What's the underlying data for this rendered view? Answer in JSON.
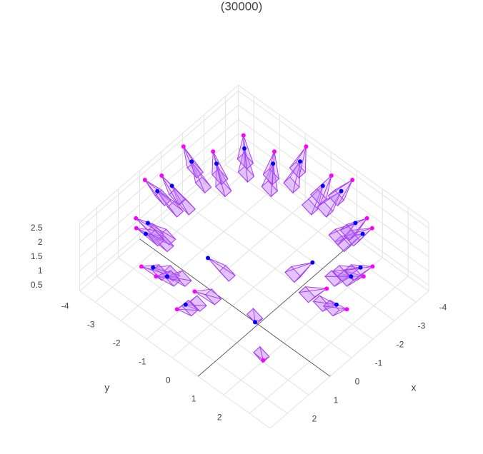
{
  "chart_data": {
    "type": "scatter3d",
    "title": "(30000)",
    "xlabel": "x",
    "ylabel": "y",
    "xlim": [
      -4.6,
      2.8
    ],
    "ylim": [
      -4.6,
      2.8
    ],
    "zlim": [
      0.3,
      2.7
    ],
    "xticks": [
      -4,
      -3,
      -2,
      -1,
      0,
      1,
      2
    ],
    "yticks": [
      -4,
      -3,
      -2,
      -1,
      0,
      1,
      2
    ],
    "zticks": [
      0.5,
      1,
      1.5,
      2,
      2.5
    ],
    "grid": true,
    "series": [
      {
        "color": "#0000ff",
        "x": [
          -0.9,
          -1.7,
          -2.5,
          -3.2,
          -3.7,
          -4.0,
          -4.1,
          -4.0,
          -3.7,
          -3.2,
          -2.5,
          -1.7,
          -0.9,
          -0.1,
          0.7,
          1.4,
          1.9,
          2.2,
          2.3,
          0.5,
          -0.3,
          -2.3
        ],
        "y": [
          2.3,
          2.2,
          1.9,
          1.4,
          0.7,
          -0.1,
          -0.9,
          -1.7,
          -2.5,
          -3.2,
          -3.7,
          -4.0,
          -4.1,
          -4.0,
          -3.7,
          -3.2,
          -2.5,
          -1.7,
          -0.9,
          0.3,
          -2.2,
          0.2
        ],
        "z": [
          1.9,
          2.3,
          1.9,
          2.3,
          1.9,
          2.3,
          1.9,
          2.3,
          1.9,
          2.3,
          1.9,
          2.3,
          1.9,
          2.3,
          1.9,
          2.3,
          1.9,
          2.3,
          1.9,
          0.9,
          1.0,
          1.1
        ]
      },
      {
        "color": "#ff00ff",
        "x": [
          -0.9,
          -1.8,
          -2.7,
          -3.4,
          -4.0,
          -4.4,
          -4.5,
          -4.4,
          -4.0,
          -3.4,
          -2.7,
          -1.8,
          -0.9,
          0.0,
          0.9,
          1.6,
          2.2,
          2.6,
          2.7,
          1.2,
          0.8,
          -2.0
        ],
        "y": [
          2.7,
          2.6,
          2.2,
          1.6,
          0.9,
          0.0,
          -0.9,
          -1.8,
          -2.7,
          -3.4,
          -4.0,
          -4.4,
          -4.5,
          -4.4,
          -4.0,
          -3.4,
          -2.7,
          -1.8,
          -0.9,
          1.2,
          -1.8,
          1.0
        ],
        "z": [
          2.0,
          2.5,
          2.0,
          2.5,
          2.0,
          2.5,
          2.0,
          2.5,
          2.0,
          2.5,
          2.0,
          2.5,
          2.0,
          2.5,
          2.0,
          2.5,
          2.0,
          2.5,
          2.0,
          0.6,
          0.8,
          0.9
        ]
      }
    ]
  }
}
